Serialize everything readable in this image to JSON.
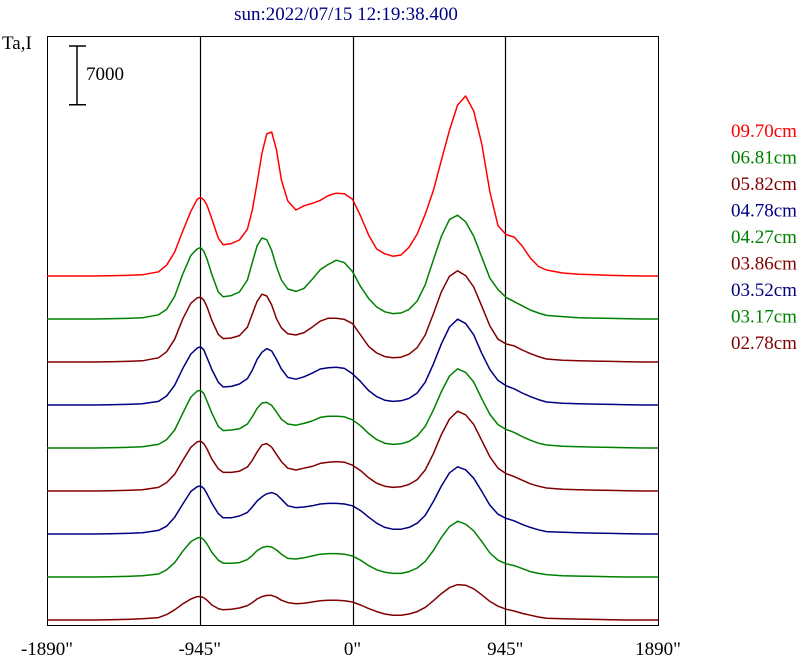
{
  "chart_data": {
    "type": "line",
    "title": "sun:2022/07/15 12:19:38.400",
    "ylabel": "Ta,I",
    "scale_bar_label": "7000",
    "scale_bar_value": 7000,
    "xlim": [
      -1890,
      1890
    ],
    "x_ticks": [
      {
        "value": -1890,
        "label": "-1890\""
      },
      {
        "value": -945,
        "label": "-945\""
      },
      {
        "value": 0,
        "label": "0\""
      },
      {
        "value": 945,
        "label": "945\""
      },
      {
        "value": 1890,
        "label": "1890\""
      }
    ],
    "vertical_lines": [
      -945,
      0,
      945
    ],
    "x": [
      -1890,
      -1800,
      -1700,
      -1600,
      -1500,
      -1400,
      -1300,
      -1200,
      -1150,
      -1100,
      -1050,
      -1000,
      -960,
      -940,
      -920,
      -900,
      -870,
      -830,
      -800,
      -750,
      -700,
      -650,
      -620,
      -590,
      -560,
      -530,
      -500,
      -470,
      -440,
      -400,
      -350,
      -300,
      -250,
      -200,
      -150,
      -100,
      -50,
      0,
      50,
      100,
      150,
      200,
      250,
      300,
      350,
      400,
      450,
      500,
      550,
      600,
      650,
      700,
      750,
      800,
      850,
      900,
      950,
      1000,
      1050,
      1100,
      1150,
      1200,
      1300,
      1400,
      1500,
      1600,
      1700,
      1800,
      1890
    ],
    "series": [
      {
        "name": "09.70cm",
        "color": "#ff0000",
        "values": [
          0,
          0,
          0,
          0,
          50,
          100,
          200,
          700,
          1800,
          4000,
          7500,
          10800,
          12800,
          13100,
          12700,
          11800,
          9500,
          6300,
          5200,
          5400,
          6000,
          7800,
          11000,
          15500,
          20500,
          23700,
          24000,
          21000,
          16000,
          12500,
          11000,
          11700,
          12100,
          12600,
          13400,
          13800,
          13700,
          12800,
          10000,
          6800,
          4500,
          3700,
          3300,
          3500,
          4800,
          7000,
          10300,
          14200,
          19300,
          24300,
          28500,
          30000,
          27500,
          22000,
          14000,
          8400,
          6900,
          6500,
          5000,
          3000,
          1600,
          1000,
          500,
          300,
          200,
          100,
          50,
          0,
          0
        ]
      },
      {
        "name": "06.81cm",
        "color": "#008000",
        "values": [
          0,
          0,
          0,
          0,
          50,
          100,
          200,
          700,
          1600,
          3800,
          7500,
          10600,
          11700,
          11900,
          11300,
          10000,
          7400,
          4500,
          3700,
          3900,
          4500,
          6500,
          9400,
          12200,
          13500,
          13200,
          11400,
          8700,
          6500,
          5000,
          4600,
          5100,
          6600,
          8200,
          9100,
          9800,
          9400,
          7900,
          5400,
          3400,
          2000,
          1200,
          900,
          1000,
          1600,
          3000,
          5700,
          9800,
          13800,
          16600,
          17300,
          16200,
          13800,
          10300,
          6800,
          4900,
          3600,
          2900,
          2200,
          1500,
          1000,
          600,
          400,
          200,
          150,
          100,
          50,
          0,
          0
        ]
      },
      {
        "name": "05.82cm",
        "color": "#800000",
        "values": [
          0,
          0,
          0,
          0,
          50,
          100,
          200,
          700,
          1700,
          3800,
          7200,
          9800,
          10700,
          10800,
          10300,
          9200,
          6900,
          4600,
          3900,
          4000,
          4400,
          5800,
          8000,
          10100,
          11300,
          11000,
          9500,
          7200,
          5700,
          4700,
          4500,
          4900,
          5800,
          6800,
          7300,
          7300,
          7100,
          6400,
          4500,
          2600,
          1500,
          900,
          700,
          800,
          1300,
          2400,
          4500,
          8000,
          11700,
          14300,
          15200,
          14400,
          12500,
          9300,
          6000,
          3800,
          3000,
          2700,
          2000,
          1400,
          900,
          500,
          300,
          200,
          150,
          100,
          50,
          0,
          0
        ]
      },
      {
        "name": "04.78cm",
        "color": "#000080",
        "values": [
          0,
          0,
          0,
          0,
          50,
          100,
          200,
          600,
          1500,
          3300,
          6100,
          8500,
          9500,
          9700,
          9200,
          7900,
          5900,
          3800,
          3000,
          3100,
          3500,
          4400,
          5800,
          7600,
          8800,
          9400,
          9000,
          7600,
          6000,
          4600,
          4300,
          4700,
          5300,
          6000,
          6200,
          6300,
          6100,
          5200,
          3900,
          2400,
          1400,
          800,
          600,
          700,
          1100,
          2000,
          3800,
          6800,
          10200,
          13000,
          14300,
          13600,
          11700,
          8600,
          5900,
          4100,
          3200,
          2700,
          2000,
          1400,
          900,
          500,
          300,
          200,
          150,
          100,
          50,
          0,
          0
        ]
      },
      {
        "name": "04.27cm",
        "color": "#008000",
        "values": [
          0,
          0,
          0,
          0,
          50,
          100,
          200,
          600,
          1400,
          3000,
          5800,
          8500,
          9500,
          9600,
          9100,
          7800,
          5800,
          3600,
          2900,
          3000,
          3200,
          4000,
          5200,
          6600,
          7500,
          7600,
          7100,
          6000,
          4800,
          4000,
          3800,
          4100,
          4500,
          5100,
          5300,
          5300,
          5200,
          4700,
          3700,
          2400,
          1400,
          800,
          600,
          700,
          1100,
          2000,
          3600,
          6300,
          9400,
          12000,
          13200,
          12600,
          11000,
          8200,
          5600,
          3900,
          3100,
          2600,
          1900,
          1300,
          800,
          500,
          300,
          200,
          150,
          100,
          50,
          0,
          0
        ]
      },
      {
        "name": "03.86cm",
        "color": "#800000",
        "values": [
          0,
          0,
          0,
          0,
          50,
          100,
          200,
          600,
          1400,
          2800,
          5100,
          7300,
          8200,
          8300,
          7900,
          7000,
          5300,
          3700,
          3100,
          3100,
          3300,
          4000,
          5100,
          6500,
          7700,
          7900,
          7300,
          6100,
          4900,
          3800,
          3500,
          3800,
          4100,
          4600,
          4800,
          4900,
          4800,
          4300,
          3400,
          2200,
          1300,
          800,
          600,
          700,
          1100,
          1900,
          3500,
          6200,
          9400,
          12000,
          13300,
          12700,
          11100,
          8400,
          5700,
          3800,
          2900,
          2400,
          1800,
          1200,
          800,
          500,
          300,
          200,
          150,
          100,
          50,
          0,
          0
        ]
      },
      {
        "name": "03.52cm",
        "color": "#000080",
        "values": [
          0,
          0,
          0,
          0,
          50,
          100,
          200,
          600,
          1300,
          2800,
          5000,
          7100,
          7900,
          8000,
          7600,
          6700,
          5100,
          3400,
          2700,
          2700,
          3000,
          3600,
          4500,
          5500,
          6200,
          6700,
          6900,
          6600,
          5800,
          4700,
          4400,
          4500,
          4700,
          5000,
          5100,
          5100,
          5000,
          4700,
          3900,
          2800,
          1800,
          1100,
          800,
          800,
          1100,
          1800,
          3100,
          5400,
          8000,
          10200,
          11200,
          10700,
          9300,
          7100,
          4800,
          3300,
          2600,
          2200,
          1600,
          1100,
          700,
          400,
          300,
          200,
          150,
          100,
          50,
          0,
          0
        ]
      },
      {
        "name": "03.17cm",
        "color": "#008000",
        "values": [
          0,
          0,
          0,
          0,
          50,
          100,
          200,
          500,
          1200,
          2400,
          4300,
          5900,
          6500,
          6600,
          6200,
          5500,
          4100,
          2800,
          2300,
          2300,
          2400,
          2900,
          3600,
          4400,
          4900,
          5100,
          5000,
          4500,
          3800,
          3100,
          3000,
          3200,
          3500,
          3800,
          3900,
          3900,
          3800,
          3500,
          2800,
          1900,
          1200,
          800,
          600,
          600,
          900,
          1500,
          2600,
          4400,
          6600,
          8400,
          9300,
          8800,
          7700,
          5900,
          4000,
          2800,
          2200,
          1900,
          1400,
          900,
          600,
          400,
          200,
          150,
          100,
          50,
          0,
          0,
          0
        ]
      },
      {
        "name": "02.78cm",
        "color": "#800000",
        "values": [
          0,
          0,
          0,
          0,
          50,
          100,
          200,
          400,
          900,
          1700,
          2700,
          3500,
          3900,
          3900,
          3700,
          3300,
          2500,
          1900,
          1700,
          1800,
          2000,
          2400,
          2900,
          3500,
          3900,
          4100,
          4100,
          3800,
          3300,
          2900,
          2700,
          2800,
          3000,
          3200,
          3300,
          3300,
          3200,
          3000,
          2500,
          1900,
          1400,
          1000,
          800,
          800,
          1000,
          1400,
          2100,
          3200,
          4400,
          5400,
          5900,
          5800,
          5200,
          4200,
          3100,
          2300,
          1800,
          1500,
          1100,
          800,
          500,
          300,
          200,
          150,
          100,
          50,
          0,
          0,
          0
        ]
      }
    ],
    "grid": false,
    "legend_placement": "right"
  }
}
